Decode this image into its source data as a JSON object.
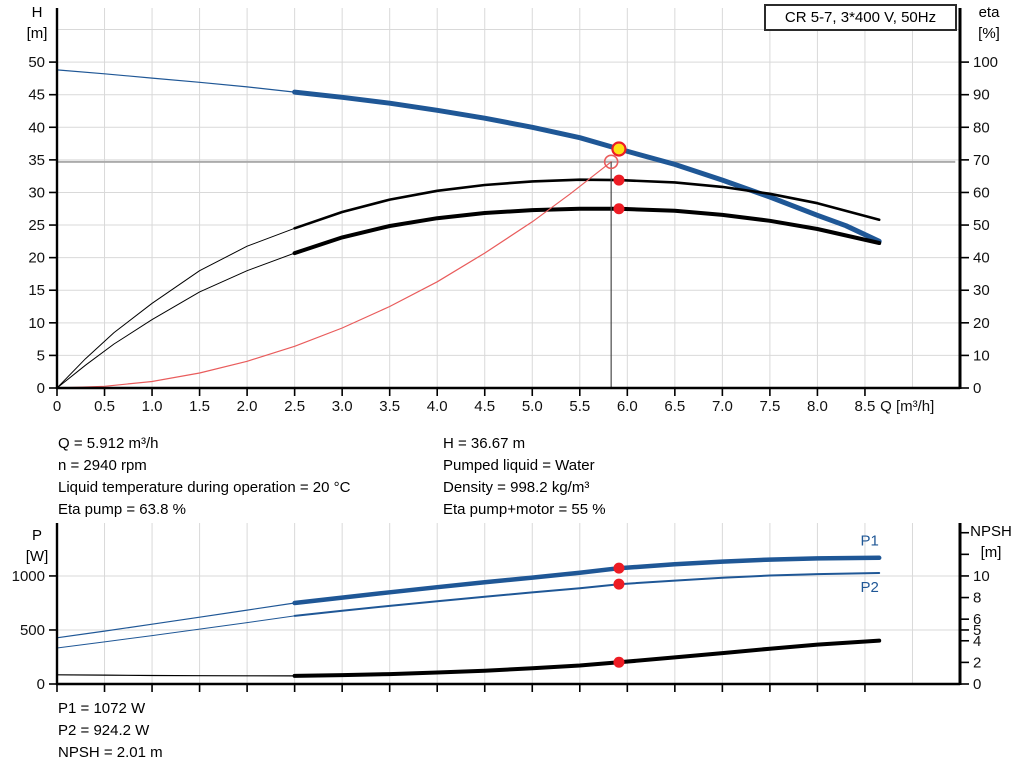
{
  "title_box": {
    "label": "CR 5-7, 3*400 V, 50Hz"
  },
  "axis_titles": {
    "top_left_line1": "H",
    "top_left_line2": "[m]",
    "top_right_line1": "eta",
    "top_right_line2": "[%]",
    "bottom_left_line1": "P",
    "bottom_left_line2": "[W]",
    "bottom_right_line1": "NPSH",
    "bottom_right_line2": "[m]"
  },
  "info_top": {
    "left_lines": [
      "Q = 5.912 m³/h",
      "n = 2940 rpm",
      "Liquid temperature during operation = 20 °C",
      "Eta pump = 63.8 %"
    ],
    "right_lines": [
      "H = 36.67 m",
      "Pumped liquid = Water",
      "Density = 998.2 kg/m³",
      "Eta pump+motor = 55 %"
    ]
  },
  "info_bottom": {
    "lines": [
      "P1 = 1072 W",
      "P2 = 924.2 W",
      "NPSH = 2.01 m"
    ]
  },
  "colors": {
    "curve_blue": "#1f5796",
    "curve_black": "#000000",
    "curve_red": "#e95c5c",
    "dot_red": "#ed1c24",
    "dot_yellow": "#ffe014",
    "grid": "#d9d9d9",
    "axis": "#000000",
    "ref_gray": "#ababab",
    "ref_dark": "#4a4a4a",
    "label_blue": "#1f5796",
    "tick_text": "#111111"
  },
  "chart_data": [
    {
      "type": "line",
      "id": "qh-eta-chart",
      "title": "CR 5-7, 3*400 V, 50Hz",
      "xlabel": "Q [m³/h]",
      "xlabel_x": 8.66,
      "ylabel_left": "H [m]",
      "ylabel_right": "eta [%]",
      "xlim": [
        0,
        9.5
      ],
      "x_ticks": [
        0,
        0.5,
        1,
        1.5,
        2,
        2.5,
        3,
        3.5,
        4,
        4.5,
        5,
        5.5,
        6,
        6.5,
        7,
        7.5,
        8,
        8.5
      ],
      "x_tick_labels": [
        "0",
        "0.5",
        "1.0",
        "1.5",
        "2.0",
        "2.5",
        "3.0",
        "3.5",
        "4.0",
        "4.5",
        "5.0",
        "5.5",
        "6.0",
        "6.5",
        "7.0",
        "7.5",
        "8.0",
        "8.5"
      ],
      "grid_x": {
        "from": 0.5,
        "to": 9.0,
        "step": 0.5
      },
      "left_axis": {
        "lim": [
          0,
          58.3
        ],
        "ticks": [
          0,
          5,
          10,
          15,
          20,
          25,
          30,
          35,
          40,
          45,
          50
        ],
        "grid": [
          5,
          10,
          15,
          20,
          25,
          30,
          35,
          40,
          45,
          50,
          55
        ]
      },
      "right_axis": {
        "lim": [
          0,
          116.6
        ],
        "ticks": [
          0,
          10,
          20,
          30,
          40,
          50,
          60,
          70,
          80,
          90,
          100
        ],
        "minor_ticks": []
      },
      "series": [
        {
          "name": "pump-curve-thin",
          "axis": "left",
          "color": "blue",
          "width": 1.2,
          "points": [
            [
              0,
              48.8
            ],
            [
              0.5,
              48.2
            ],
            [
              1,
              47.55
            ],
            [
              1.5,
              46.9
            ],
            [
              2,
              46.2
            ],
            [
              2.5,
              45.4
            ]
          ]
        },
        {
          "name": "pump-curve",
          "axis": "left",
          "color": "blue",
          "width": 5,
          "points": [
            [
              2.5,
              45.4
            ],
            [
              3,
              44.6
            ],
            [
              3.5,
              43.7
            ],
            [
              4,
              42.6
            ],
            [
              4.5,
              41.4
            ],
            [
              5,
              40.0
            ],
            [
              5.5,
              38.4
            ],
            [
              5.912,
              36.67
            ],
            [
              6.5,
              34.3
            ],
            [
              7,
              31.9
            ],
            [
              7.5,
              29.3
            ],
            [
              8,
              26.5
            ],
            [
              8.3,
              24.9
            ],
            [
              8.65,
              22.5
            ]
          ]
        },
        {
          "name": "eta-pump-thin",
          "axis": "right",
          "color": "black",
          "width": 1,
          "points": [
            [
              0,
              0
            ],
            [
              0.3,
              9
            ],
            [
              0.6,
              17
            ],
            [
              1,
              26
            ],
            [
              1.5,
              36
            ],
            [
              2,
              43.5
            ],
            [
              2.5,
              49
            ]
          ]
        },
        {
          "name": "eta-pump",
          "axis": "right",
          "color": "black",
          "width": 2.6,
          "points": [
            [
              2.5,
              49
            ],
            [
              3,
              54
            ],
            [
              3.5,
              57.8
            ],
            [
              4,
              60.5
            ],
            [
              4.5,
              62.3
            ],
            [
              5,
              63.4
            ],
            [
              5.5,
              63.9
            ],
            [
              5.912,
              63.8
            ],
            [
              6.5,
              63.1
            ],
            [
              7,
              61.7
            ],
            [
              7.5,
              59.6
            ],
            [
              8,
              56.7
            ],
            [
              8.65,
              51.6
            ]
          ]
        },
        {
          "name": "eta-pump-motor-thin",
          "axis": "right",
          "color": "black",
          "width": 1,
          "points": [
            [
              0,
              0
            ],
            [
              0.3,
              7
            ],
            [
              0.6,
              13.5
            ],
            [
              1,
              21
            ],
            [
              1.5,
              29.5
            ],
            [
              2,
              36
            ],
            [
              2.5,
              41.4
            ]
          ]
        },
        {
          "name": "eta-pump-motor",
          "axis": "right",
          "color": "black",
          "width": 4,
          "points": [
            [
              2.5,
              41.4
            ],
            [
              3,
              46.2
            ],
            [
              3.5,
              49.7
            ],
            [
              4,
              52.1
            ],
            [
              4.5,
              53.7
            ],
            [
              5,
              54.6
            ],
            [
              5.5,
              55.0
            ],
            [
              5.912,
              55.0
            ],
            [
              6.5,
              54.4
            ],
            [
              7,
              53.1
            ],
            [
              7.5,
              51.3
            ],
            [
              8,
              48.8
            ],
            [
              8.65,
              44.5
            ]
          ]
        },
        {
          "name": "system-curve",
          "axis": "left",
          "color": "red",
          "width": 1.2,
          "points": [
            [
              0,
              0
            ],
            [
              0.5,
              0.26
            ],
            [
              1,
              1.0
            ],
            [
              1.5,
              2.3
            ],
            [
              2,
              4.1
            ],
            [
              2.5,
              6.4
            ],
            [
              3,
              9.2
            ],
            [
              3.5,
              12.5
            ],
            [
              4,
              16.3
            ],
            [
              4.5,
              20.7
            ],
            [
              5,
              25.5
            ],
            [
              5.4,
              29.8
            ],
            [
              5.83,
              34.7
            ]
          ]
        }
      ],
      "ref_lines": [
        {
          "dir": "h",
          "axis": "left",
          "y": 34.7,
          "x0": 0,
          "x1": 9.45,
          "color": "gray",
          "width": 2
        },
        {
          "dir": "v",
          "axis": "left",
          "x": 5.83,
          "y0": 0,
          "y1": 34.7,
          "color": "dark",
          "width": 1.2
        }
      ],
      "markers": [
        {
          "shape": "open-circle",
          "axis": "left",
          "x": 5.83,
          "y": 34.7,
          "r": 6.5
        },
        {
          "shape": "dot",
          "axis": "right",
          "x": 5.912,
          "y": 63.8,
          "r": 5.5
        },
        {
          "shape": "dot",
          "axis": "right",
          "x": 5.912,
          "y": 55.0,
          "r": 5.5
        },
        {
          "shape": "duty-dot",
          "axis": "left",
          "x": 5.912,
          "y": 36.67,
          "r": 6.5
        }
      ],
      "annotations": [],
      "duty_point": {
        "Q": 5.912,
        "H": 36.67,
        "eta_pump": 63.8,
        "eta_pump_motor": 55
      }
    },
    {
      "type": "line",
      "id": "power-npsh-chart",
      "title": "",
      "xlabel": "",
      "ylabel_left": "P [W]",
      "ylabel_right": "NPSH [m]",
      "xlim": [
        0,
        9.5
      ],
      "x_ticks": [
        0,
        0.5,
        1,
        1.5,
        2,
        2.5,
        3,
        3.5,
        4,
        4.5,
        5,
        5.5,
        6,
        6.5,
        7,
        7.5,
        8,
        8.5
      ],
      "grid_x": {
        "from": 0.5,
        "to": 9.0,
        "step": 0.5
      },
      "left_axis": {
        "lim": [
          0,
          1490
        ],
        "ticks": [
          0,
          500,
          1000
        ],
        "grid": [
          500,
          1000
        ]
      },
      "right_axis": {
        "lim": [
          0,
          14.9
        ],
        "ticks": [
          0,
          2,
          4,
          5,
          6,
          8,
          10
        ],
        "minor_ticks": [
          12,
          14
        ]
      },
      "series": [
        {
          "name": "p1-thin",
          "axis": "left",
          "color": "blue",
          "width": 1.2,
          "points": [
            [
              0,
              428
            ],
            [
              0.5,
              490
            ],
            [
              1,
              553
            ],
            [
              1.5,
              618
            ],
            [
              2,
              684
            ],
            [
              2.5,
              750
            ]
          ]
        },
        {
          "name": "p1",
          "axis": "left",
          "color": "blue",
          "width": 4.5,
          "points": [
            [
              2.5,
              750
            ],
            [
              3,
              800
            ],
            [
              3.5,
              849
            ],
            [
              4,
              896
            ],
            [
              4.5,
              941
            ],
            [
              5,
              985
            ],
            [
              5.5,
              1029
            ],
            [
              5.912,
              1072
            ],
            [
              6.5,
              1108
            ],
            [
              7,
              1133
            ],
            [
              7.5,
              1151
            ],
            [
              8,
              1162
            ],
            [
              8.65,
              1168
            ]
          ]
        },
        {
          "name": "p2-thin",
          "axis": "left",
          "color": "blue",
          "width": 1,
          "points": [
            [
              0,
              333
            ],
            [
              0.5,
              390
            ],
            [
              1,
              448
            ],
            [
              1.5,
              508
            ],
            [
              2,
              568
            ],
            [
              2.5,
              630
            ]
          ]
        },
        {
          "name": "p2",
          "axis": "left",
          "color": "blue",
          "width": 2,
          "points": [
            [
              2.5,
              630
            ],
            [
              3,
              678
            ],
            [
              3.5,
              723
            ],
            [
              4,
              766
            ],
            [
              4.5,
              808
            ],
            [
              5,
              848
            ],
            [
              5.5,
              887
            ],
            [
              5.912,
              924
            ],
            [
              6.5,
              957
            ],
            [
              7,
              984
            ],
            [
              7.5,
              1004
            ],
            [
              8,
              1017
            ],
            [
              8.65,
              1027
            ]
          ]
        },
        {
          "name": "npsh-thin",
          "axis": "right",
          "color": "black",
          "width": 1.2,
          "points": [
            [
              0,
              0.85
            ],
            [
              0.5,
              0.82
            ],
            [
              1,
              0.79
            ],
            [
              1.5,
              0.77
            ],
            [
              2,
              0.76
            ],
            [
              2.5,
              0.75
            ]
          ]
        },
        {
          "name": "npsh",
          "axis": "right",
          "color": "black",
          "width": 4,
          "points": [
            [
              2.5,
              0.75
            ],
            [
              3,
              0.82
            ],
            [
              3.5,
              0.92
            ],
            [
              4,
              1.06
            ],
            [
              4.5,
              1.23
            ],
            [
              5,
              1.45
            ],
            [
              5.5,
              1.71
            ],
            [
              5.912,
              2.01
            ],
            [
              6.5,
              2.46
            ],
            [
              7,
              2.86
            ],
            [
              7.5,
              3.27
            ],
            [
              8,
              3.65
            ],
            [
              8.65,
              4.02
            ]
          ]
        }
      ],
      "ref_lines": [],
      "markers": [
        {
          "shape": "dot",
          "axis": "left",
          "x": 5.912,
          "y": 1072,
          "r": 5.5
        },
        {
          "shape": "dot",
          "axis": "left",
          "x": 5.912,
          "y": 924,
          "r": 5.5
        },
        {
          "shape": "dot",
          "axis": "right",
          "x": 5.912,
          "y": 2.01,
          "r": 5.5
        }
      ],
      "annotations": [
        {
          "text": "P1",
          "axis": "left",
          "x": 8.55,
          "y": 1330
        },
        {
          "text": "P2",
          "axis": "left",
          "x": 8.55,
          "y": 900
        }
      ],
      "duty_point": {
        "Q": 5.912,
        "P1_W": 1072,
        "P2_W": 924.2,
        "NPSH_m": 2.01
      }
    }
  ]
}
